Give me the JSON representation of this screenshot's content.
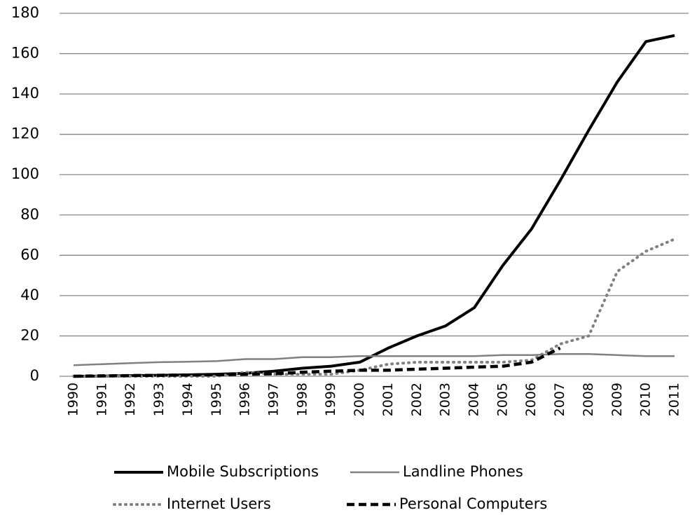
{
  "chart_data": {
    "type": "line",
    "categories": [
      "1990",
      "1991",
      "1992",
      "1993",
      "1994",
      "1995",
      "1996",
      "1997",
      "1998",
      "1999",
      "2000",
      "2001",
      "2002",
      "2003",
      "2004",
      "2005",
      "2006",
      "2007",
      "2008",
      "2009",
      "2010",
      "2011"
    ],
    "series": [
      {
        "name": "Mobile Subscriptions",
        "color": "#000000",
        "dash": "solid",
        "values": [
          0,
          0.1,
          0.3,
          0.5,
          0.7,
          1,
          1.5,
          2.5,
          4,
          5,
          7,
          14,
          20,
          25,
          34,
          55,
          73,
          97,
          122,
          146,
          166,
          169
        ]
      },
      {
        "name": "Landline Phones",
        "color": "#808080",
        "dash": "solid",
        "values": [
          5.5,
          6,
          6.5,
          7,
          7.2,
          7.5,
          8.5,
          8.5,
          9.5,
          9.5,
          10,
          10,
          10,
          10,
          10,
          10.5,
          10.5,
          11,
          11,
          10.5,
          10,
          10
        ]
      },
      {
        "name": "Internet Users",
        "color": "#808080",
        "dash": "dotted",
        "values": [
          0,
          0,
          0,
          0,
          0,
          0,
          2,
          1,
          1,
          1,
          3,
          6,
          7,
          7,
          7,
          7,
          8,
          16,
          20,
          52,
          62,
          68
        ]
      },
      {
        "name": "Personal Computers",
        "color": "#000000",
        "dash": "dashed",
        "values": [
          0,
          0.2,
          0.3,
          0.5,
          0.6,
          0.8,
          1,
          1.2,
          2,
          2.5,
          3,
          3,
          3.5,
          4,
          4.5,
          5,
          7,
          14,
          null,
          null,
          null,
          null
        ]
      }
    ],
    "ylim": [
      0,
      180
    ],
    "yticks": [
      0,
      20,
      40,
      60,
      80,
      100,
      120,
      140,
      160,
      180
    ],
    "grid": true,
    "legend": "bottom"
  }
}
